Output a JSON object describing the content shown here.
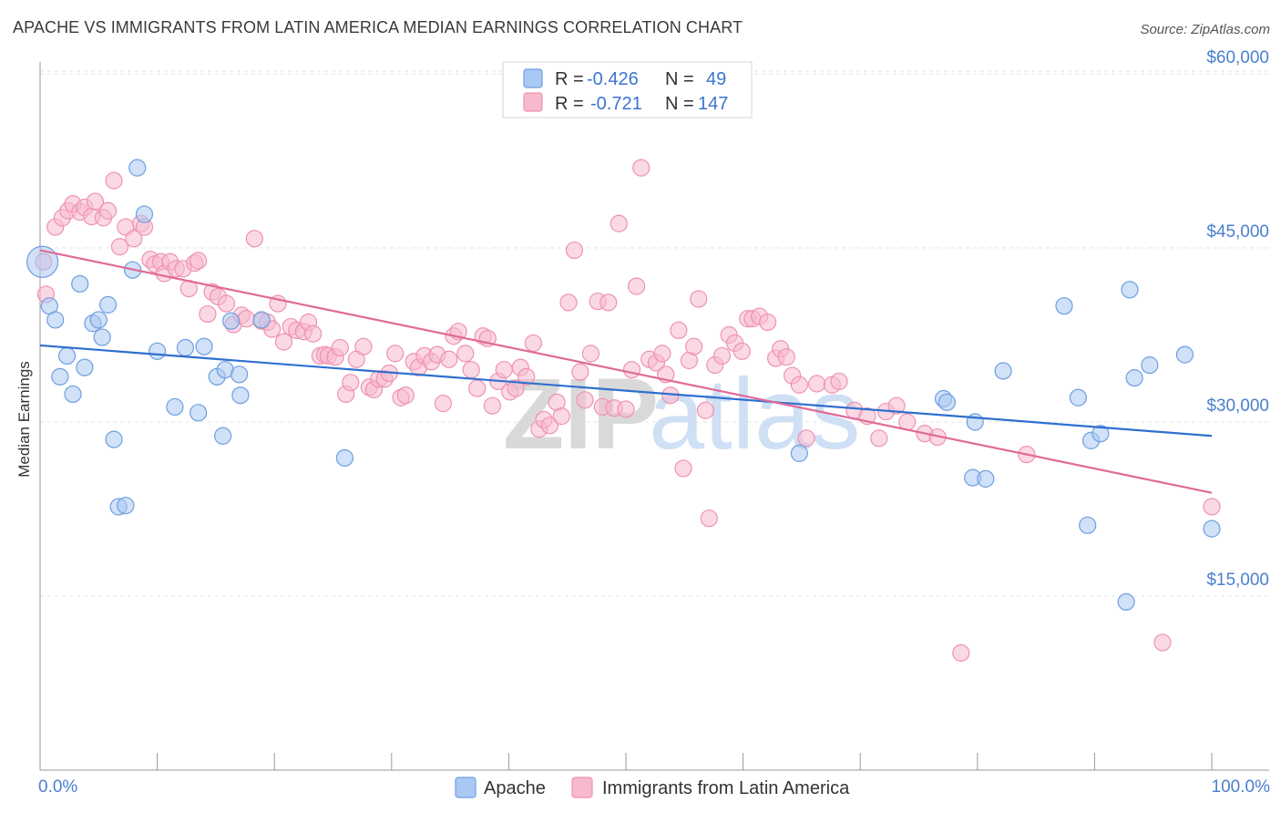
{
  "title": "APACHE VS IMMIGRANTS FROM LATIN AMERICA MEDIAN EARNINGS CORRELATION CHART",
  "source": "Source: ZipAtlas.com",
  "watermark": {
    "zip": "ZIP",
    "atlas": "atlas"
  },
  "colors": {
    "apache_fill": "#a9c8f3",
    "apache_stroke": "#6e9fe0",
    "apache_line": "#2f6fcf",
    "latin_fill": "#f7b9cd",
    "latin_stroke": "#ee92b0",
    "latin_line": "#e06a98",
    "tick_text": "#4a7fd0",
    "grid": "#e3e3e3"
  },
  "legend": {
    "rows": [
      {
        "r_label": "R =",
        "r_value": "-0.426",
        "n_label": "N =",
        "n_value": "49"
      },
      {
        "r_label": "R =",
        "r_value": "-0.721",
        "n_label": "N =",
        "n_value": "147"
      }
    ]
  },
  "bottom_legend": {
    "apache": "Apache",
    "latin": "Immigrants from Latin America"
  },
  "chart_data": {
    "type": "scatter",
    "title": "APACHE VS IMMIGRANTS FROM LATIN AMERICA MEDIAN EARNINGS CORRELATION CHART",
    "xlabel": "",
    "ylabel": "Median Earnings",
    "xlim": [
      0,
      100
    ],
    "ylim": [
      0,
      64000
    ],
    "x_tick_labels": {
      "min": "0.0%",
      "max": "100.0%"
    },
    "y_ticks": [
      {
        "value": 15000,
        "label": "$15,000"
      },
      {
        "value": 30000,
        "label": "$30,000"
      },
      {
        "value": 45000,
        "label": "$45,000"
      },
      {
        "value": 60000,
        "label": "$60,000"
      }
    ],
    "grid": true,
    "legend_position": "top-center",
    "series": [
      {
        "name": "Apache",
        "r": -0.426,
        "n": 49,
        "trend": {
          "x": [
            0,
            100
          ],
          "y": [
            36600,
            28800
          ]
        },
        "points": [
          [
            0.2,
            43800
          ],
          [
            0.8,
            40000
          ],
          [
            1.3,
            38800
          ],
          [
            1.7,
            33900
          ],
          [
            2.3,
            35700
          ],
          [
            2.8,
            32400
          ],
          [
            3.4,
            41900
          ],
          [
            3.8,
            34700
          ],
          [
            4.5,
            38500
          ],
          [
            5.0,
            38800
          ],
          [
            5.3,
            37300
          ],
          [
            5.8,
            40100
          ],
          [
            6.3,
            28500
          ],
          [
            6.7,
            22700
          ],
          [
            7.3,
            22800
          ],
          [
            7.9,
            43100
          ],
          [
            8.3,
            51900
          ],
          [
            8.9,
            47900
          ],
          [
            10.0,
            36100
          ],
          [
            11.5,
            31300
          ],
          [
            12.4,
            36400
          ],
          [
            13.5,
            30800
          ],
          [
            14.0,
            36500
          ],
          [
            15.1,
            33900
          ],
          [
            15.6,
            28800
          ],
          [
            15.8,
            34500
          ],
          [
            16.3,
            38700
          ],
          [
            17.0,
            34100
          ],
          [
            17.1,
            32300
          ],
          [
            18.9,
            38800
          ],
          [
            26.0,
            26900
          ],
          [
            64.8,
            27300
          ],
          [
            77.1,
            32000
          ],
          [
            77.4,
            31700
          ],
          [
            79.8,
            30000
          ],
          [
            79.6,
            25200
          ],
          [
            80.7,
            25100
          ],
          [
            82.2,
            34400
          ],
          [
            87.4,
            40000
          ],
          [
            88.6,
            32100
          ],
          [
            89.4,
            21100
          ],
          [
            89.7,
            28400
          ],
          [
            90.5,
            29000
          ],
          [
            92.7,
            14500
          ],
          [
            93.0,
            41400
          ],
          [
            93.4,
            33800
          ],
          [
            94.7,
            34900
          ],
          [
            97.7,
            35800
          ],
          [
            100.0,
            20800
          ]
        ]
      },
      {
        "name": "Immigrants from Latin America",
        "r": -0.721,
        "n": 147,
        "trend": {
          "x": [
            0,
            100
          ],
          "y": [
            44800,
            23900
          ]
        },
        "points": [
          [
            0.3,
            43800
          ],
          [
            0.5,
            41000
          ],
          [
            1.3,
            46800
          ],
          [
            1.9,
            47600
          ],
          [
            2.4,
            48200
          ],
          [
            2.8,
            48800
          ],
          [
            3.4,
            48100
          ],
          [
            3.8,
            48500
          ],
          [
            4.4,
            47700
          ],
          [
            4.7,
            49000
          ],
          [
            5.4,
            47600
          ],
          [
            5.8,
            48200
          ],
          [
            6.3,
            50800
          ],
          [
            6.8,
            45100
          ],
          [
            7.3,
            46800
          ],
          [
            8.0,
            45800
          ],
          [
            8.6,
            47100
          ],
          [
            8.9,
            46800
          ],
          [
            9.4,
            44000
          ],
          [
            9.8,
            43600
          ],
          [
            10.3,
            43800
          ],
          [
            10.6,
            42800
          ],
          [
            11.1,
            43800
          ],
          [
            11.6,
            43200
          ],
          [
            12.2,
            43200
          ],
          [
            12.7,
            41500
          ],
          [
            13.2,
            43700
          ],
          [
            13.5,
            43900
          ],
          [
            14.3,
            39300
          ],
          [
            14.7,
            41200
          ],
          [
            15.2,
            40800
          ],
          [
            15.9,
            40200
          ],
          [
            16.5,
            38400
          ],
          [
            17.2,
            39200
          ],
          [
            17.6,
            38900
          ],
          [
            18.3,
            45800
          ],
          [
            18.9,
            38700
          ],
          [
            19.4,
            38600
          ],
          [
            19.8,
            38000
          ],
          [
            20.3,
            40200
          ],
          [
            20.8,
            36900
          ],
          [
            21.4,
            38200
          ],
          [
            21.9,
            37900
          ],
          [
            22.5,
            37800
          ],
          [
            22.9,
            38600
          ],
          [
            23.3,
            37600
          ],
          [
            23.9,
            35700
          ],
          [
            24.3,
            35800
          ],
          [
            24.6,
            35700
          ],
          [
            25.2,
            35600
          ],
          [
            25.6,
            36400
          ],
          [
            26.1,
            32400
          ],
          [
            26.5,
            33400
          ],
          [
            27.0,
            35400
          ],
          [
            27.6,
            36500
          ],
          [
            28.1,
            33000
          ],
          [
            28.5,
            32800
          ],
          [
            28.9,
            33700
          ],
          [
            29.4,
            33700
          ],
          [
            29.8,
            34200
          ],
          [
            30.3,
            35900
          ],
          [
            30.8,
            32100
          ],
          [
            31.2,
            32300
          ],
          [
            31.9,
            35200
          ],
          [
            32.3,
            34700
          ],
          [
            32.8,
            35700
          ],
          [
            33.4,
            35200
          ],
          [
            33.9,
            35800
          ],
          [
            34.4,
            31600
          ],
          [
            34.9,
            35400
          ],
          [
            35.3,
            37400
          ],
          [
            35.7,
            37800
          ],
          [
            36.3,
            35900
          ],
          [
            36.8,
            34500
          ],
          [
            37.3,
            32900
          ],
          [
            37.8,
            37400
          ],
          [
            38.2,
            37200
          ],
          [
            38.6,
            31400
          ],
          [
            39.1,
            33500
          ],
          [
            39.6,
            34500
          ],
          [
            40.1,
            32600
          ],
          [
            40.6,
            32900
          ],
          [
            41.0,
            34700
          ],
          [
            41.5,
            33900
          ],
          [
            42.1,
            36800
          ],
          [
            42.6,
            29400
          ],
          [
            43.0,
            30200
          ],
          [
            43.5,
            29700
          ],
          [
            44.1,
            31700
          ],
          [
            44.5,
            30500
          ],
          [
            45.1,
            40300
          ],
          [
            45.6,
            44800
          ],
          [
            46.1,
            34300
          ],
          [
            46.5,
            31900
          ],
          [
            47.0,
            35900
          ],
          [
            47.6,
            40400
          ],
          [
            48.0,
            31300
          ],
          [
            48.5,
            40300
          ],
          [
            49.0,
            31200
          ],
          [
            49.4,
            47100
          ],
          [
            50.0,
            31100
          ],
          [
            50.5,
            34500
          ],
          [
            50.9,
            41700
          ],
          [
            51.3,
            51900
          ],
          [
            52.0,
            35400
          ],
          [
            52.6,
            35100
          ],
          [
            53.1,
            35900
          ],
          [
            53.4,
            34100
          ],
          [
            53.8,
            32300
          ],
          [
            54.5,
            37900
          ],
          [
            54.9,
            26000
          ],
          [
            55.4,
            35300
          ],
          [
            55.8,
            36500
          ],
          [
            56.2,
            40600
          ],
          [
            56.8,
            31000
          ],
          [
            57.1,
            21700
          ],
          [
            57.6,
            34900
          ],
          [
            58.2,
            35700
          ],
          [
            58.8,
            37500
          ],
          [
            59.3,
            36800
          ],
          [
            59.9,
            36100
          ],
          [
            60.4,
            38900
          ],
          [
            60.8,
            38900
          ],
          [
            61.4,
            39100
          ],
          [
            62.1,
            38600
          ],
          [
            62.8,
            35500
          ],
          [
            63.2,
            36300
          ],
          [
            63.7,
            35600
          ],
          [
            64.2,
            34000
          ],
          [
            64.8,
            33200
          ],
          [
            65.4,
            28600
          ],
          [
            66.3,
            33300
          ],
          [
            67.6,
            33200
          ],
          [
            68.2,
            33500
          ],
          [
            69.5,
            31000
          ],
          [
            70.6,
            30500
          ],
          [
            71.6,
            28600
          ],
          [
            72.2,
            30900
          ],
          [
            73.1,
            31400
          ],
          [
            74.0,
            30000
          ],
          [
            75.5,
            29000
          ],
          [
            76.6,
            28700
          ],
          [
            78.6,
            10100
          ],
          [
            84.2,
            27200
          ],
          [
            95.8,
            11000
          ],
          [
            100.0,
            22700
          ]
        ]
      }
    ]
  }
}
